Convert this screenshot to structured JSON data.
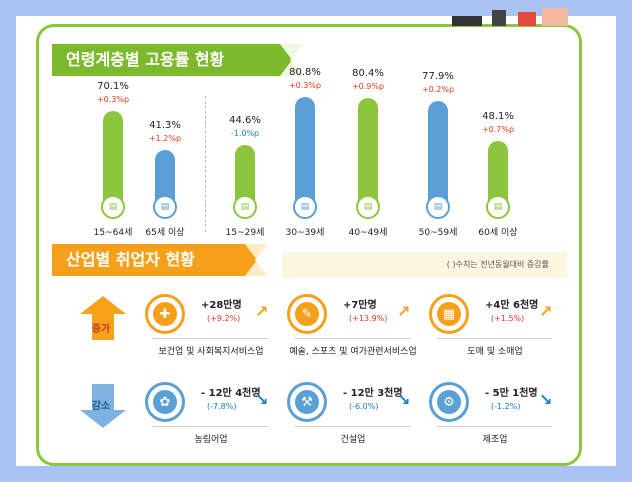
{
  "title_age": "연령계층별 고용률 현황",
  "title_industry": "산업별 취업자 현황",
  "hint": "( )수치는 전년동월대비 증감률",
  "labels": {
    "increase": "증가",
    "decrease": "감소"
  },
  "colors": {
    "green": "#8cc63f",
    "blue": "#5aa0d6",
    "orange": "#f5a01a",
    "up": "#e4361e",
    "down": "#1a7fc2"
  },
  "chart_data": {
    "type": "bar",
    "title": "연령계층별 고용률 현황",
    "categories": [
      "15~64세",
      "65세 이상",
      "15~29세",
      "30~39세",
      "40~49세",
      "50~59세",
      "60세 이상"
    ],
    "values": [
      70.1,
      41.3,
      44.6,
      80.8,
      80.4,
      77.9,
      48.1
    ],
    "value_labels": [
      "70.1%",
      "41.3%",
      "44.6%",
      "80.8%",
      "80.4%",
      "77.9%",
      "48.1%"
    ],
    "changes": [
      "+0.3%p",
      "+1.2%p",
      "-1.0%p",
      "+0.3%p",
      "+0.9%p",
      "+0.2%p",
      "+0.7%p"
    ],
    "ylim": [
      0,
      100
    ],
    "grid": false
  },
  "industry": {
    "increase": [
      {
        "name": "보건업 및 사회복지서비스업",
        "value": "+28만명",
        "rate": "(+9.2%)",
        "icon": "first-aid-kit-icon"
      },
      {
        "name": "예술, 스포츠 및 여가관련서비스업",
        "value": "+7만명",
        "rate": "(+13.9%)",
        "icon": "palette-icon"
      },
      {
        "name": "도매 및 소매업",
        "value": "+4만 6천명",
        "rate": "(+1.5%)",
        "icon": "basket-icon"
      }
    ],
    "decrease": [
      {
        "name": "농림어업",
        "value": "- 12만 4천명",
        "rate": "(-7.8%)",
        "icon": "wheat-icon"
      },
      {
        "name": "건설업",
        "value": "- 12만 3천명",
        "rate": "(-6.0%)",
        "icon": "excavator-icon"
      },
      {
        "name": "제조업",
        "value": "- 5만 1천명",
        "rate": "(-1.2%)",
        "icon": "gear-icon"
      }
    ]
  }
}
